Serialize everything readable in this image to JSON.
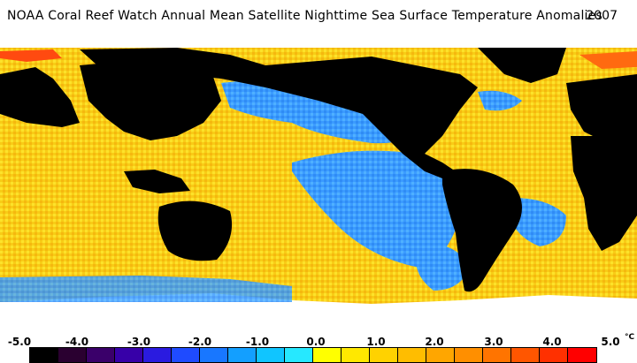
{
  "title": "NOAA Coral Reef Watch Annual Mean Satellite Nighttime Sea Surface Temperature Anomalies",
  "year": "2007",
  "colors": {
    "land": "#000000",
    "no_data": "#ffffff",
    "ocean_warm": "#f7d21a",
    "ocean_cool": "#2f9bff"
  },
  "legend": {
    "unit": "°C",
    "labels": [
      "-5.0",
      "-4.0",
      "-3.0",
      "-2.0",
      "-1.0",
      "0.0",
      "1.0",
      "2.0",
      "3.0",
      "4.0",
      "5.0"
    ],
    "swatches": [
      "#000000",
      "#2a0030",
      "#3a006a",
      "#3700a8",
      "#2a1be0",
      "#1f4bff",
      "#1877ff",
      "#139fff",
      "#10c5ff",
      "#26e8ff",
      "#ffff00",
      "#ffe800",
      "#ffd200",
      "#ffbd00",
      "#ffa600",
      "#ff8f00",
      "#ff7400",
      "#ff5600",
      "#ff3000",
      "#ff0000"
    ]
  }
}
